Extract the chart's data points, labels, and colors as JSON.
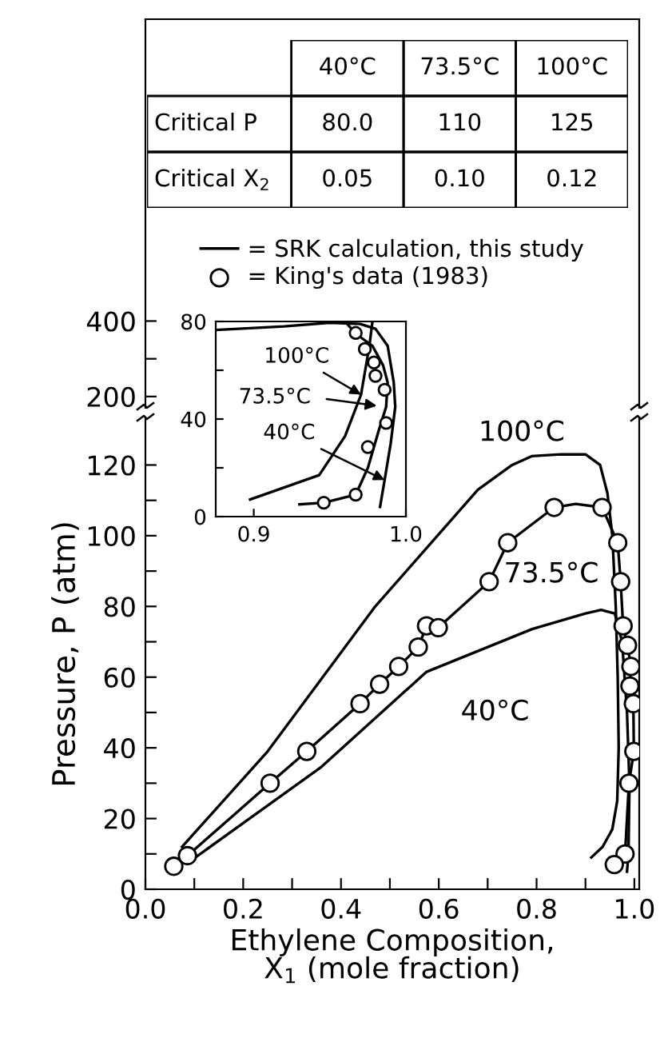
{
  "chart_data": [
    {
      "type": "other",
      "categories": [
        "40°C",
        "73.5°C",
        "100°C"
      ],
      "y_categories": [
        "Critical P",
        "Critical X$_{2}$"
      ],
      "cell_labels": [
        [
          "80.0",
          "110",
          "125"
        ],
        [
          "0.05",
          "0.10",
          "0.12"
        ]
      ]
    },
    {
      "type": "line",
      "xlim": [
        0,
        1.01
      ],
      "ylim": [
        170,
        1200
      ],
      "yticks": [
        200,
        {
          "value": 300,
          "label": null
        },
        400
      ],
      "tick_labels": "y"
    },
    {
      "type": "line",
      "xlabel": "Ethylene Composition,\nX$_{1}$ (mole fraction)",
      "ylabel": "Pressure, P (atm)",
      "xlim": [
        0,
        1.01
      ],
      "ylim": [
        0,
        133
      ],
      "xticks": [
        {
          "value": 0,
          "label": "0.0"
        },
        {
          "value": 0.1,
          "label": null
        },
        0.2,
        {
          "value": 0.3,
          "label": null
        },
        0.4,
        {
          "value": 0.5,
          "label": null
        },
        0.6,
        {
          "value": 0.7,
          "label": null
        },
        0.8,
        {
          "value": 0.9,
          "label": null
        },
        {
          "value": 1,
          "label": "1.0"
        }
      ],
      "yticks": [
        0,
        {
          "value": 10,
          "label": null
        },
        20,
        {
          "value": 30,
          "label": null
        },
        40,
        {
          "value": 50,
          "label": null
        },
        60,
        {
          "value": 70,
          "label": null
        },
        80,
        {
          "value": 90,
          "label": null
        },
        100,
        {
          "value": 110,
          "label": null
        },
        120
      ],
      "legend": "top",
      "series": [
        {
          "type": "line",
          "name": "= SRK calculation, this study",
          "color": "#000000",
          "x": [
            0.092,
            0.358,
            0.575,
            0.791,
            0.9,
            0.932,
            0.96,
            0.975,
            0.985,
            0.99,
            0.988,
            0.985
          ],
          "values": [
            8,
            34.4,
            61.5,
            73.6,
            78,
            79,
            78,
            70,
            50,
            30,
            10,
            5
          ]
        },
        {
          "type": "line",
          "color": "#000000",
          "x": [
            0.058,
            0.086,
            0.255,
            0.33,
            0.439,
            0.479,
            0.518,
            0.558,
            0.575,
            0.599,
            0.703,
            0.741,
            0.836,
            0.88,
            0.934,
            0.966,
            0.972,
            0.977,
            0.986,
            0.993,
            0.991,
            0.998,
            0.999,
            0.989,
            0.981,
            0.97
          ],
          "values": [
            6.5,
            9.5,
            30,
            39,
            52.5,
            58,
            63,
            68.5,
            74.5,
            74,
            87,
            98,
            108,
            109,
            108,
            98,
            87,
            74.5,
            69,
            63,
            57.5,
            52.5,
            39,
            30,
            10,
            7
          ]
        },
        {
          "type": "line",
          "color": "#000000",
          "x": [
            0.075,
            0.25,
            0.47,
            0.68,
            0.75,
            0.79,
            0.85,
            0.9,
            0.93,
            0.945,
            0.955,
            0.962,
            0.966,
            0.968,
            0.965,
            0.955,
            0.935,
            0.912
          ],
          "values": [
            12,
            39,
            80,
            113,
            120,
            122.5,
            123,
            123,
            120,
            112,
            100,
            80,
            60,
            40,
            25,
            17,
            12,
            9
          ]
        },
        {
          "type": "scatter",
          "name": "= King's data (1983)",
          "color": "#000000",
          "marker": "circle",
          "x": [
            0.058,
            0.086,
            0.255,
            0.33,
            0.439,
            0.479,
            0.518,
            0.558,
            0.575,
            0.599,
            0.703,
            0.741,
            0.836,
            0.934,
            0.966,
            0.972,
            0.977,
            0.986,
            0.993,
            0.991,
            0.998,
            0.999,
            0.989,
            0.981,
            0.959
          ],
          "values": [
            6.5,
            9.5,
            30,
            39,
            52.5,
            58,
            63,
            68.5,
            74.5,
            74,
            87,
            98,
            108,
            108,
            98,
            87,
            74.5,
            69,
            63,
            57.5,
            52.5,
            39,
            30,
            10,
            7
          ]
        }
      ],
      "annotations": [
        "100°C",
        "73.5°C",
        "40°C"
      ]
    },
    {
      "type": "line",
      "xlim": [
        0.875,
        1.0
      ],
      "ylim": [
        0,
        80
      ],
      "xticks": [
        0.9,
        {
          "value": 1,
          "label": "1.0"
        }
      ],
      "yticks": [
        0,
        {
          "value": 20,
          "label": null
        },
        40,
        {
          "value": 60,
          "label": null
        },
        80
      ],
      "series": [
        {
          "type": "line",
          "color": "#000000",
          "x": [
            0.875,
            0.92,
            0.95,
            0.97,
            0.98,
            0.988,
            0.992,
            0.993,
            0.99,
            0.986,
            0.983
          ],
          "values": [
            76.5,
            78,
            79.5,
            79,
            77,
            70,
            55,
            45,
            30,
            15,
            4
          ]
        },
        {
          "type": "line",
          "color": "#000000",
          "x": [
            0.93,
            0.946,
            0.967,
            0.975,
            0.982,
            0.987,
            0.988,
            0.985,
            0.978,
            0.967,
            0.96
          ],
          "values": [
            5,
            5.7,
            9,
            20,
            35,
            45,
            55,
            62,
            70,
            75,
            80
          ]
        },
        {
          "type": "line",
          "color": "#000000",
          "x": [
            0.8976,
            0.943,
            0.96,
            0.9705,
            0.976,
            0.978
          ],
          "values": [
            7,
            17,
            33,
            50,
            70,
            80
          ]
        },
        {
          "type": "scatter",
          "color": "#000000",
          "marker": "circle",
          "x": [
            0.967,
            0.973,
            0.979,
            0.98,
            0.986,
            0.987,
            0.975,
            0.967,
            0.946
          ],
          "values": [
            75.3,
            68.7,
            63.2,
            57.7,
            52,
            38.4,
            28.5,
            9,
            5.7
          ]
        }
      ],
      "annotations": [
        {
          "text": "100°C",
          "x": 0.9705,
          "y": 50
        },
        "73.5°C",
        {
          "text": "40°C",
          "x": 0.986,
          "y": 15
        }
      ]
    }
  ]
}
